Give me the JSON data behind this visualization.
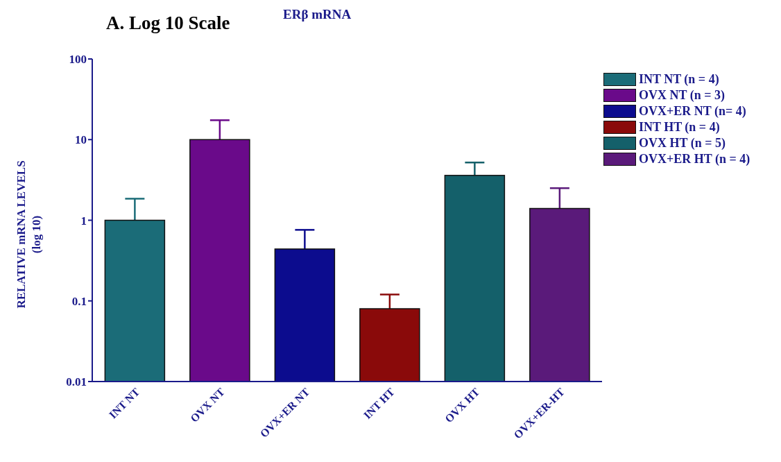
{
  "chart_data": {
    "type": "bar",
    "title": "ERβ mRNA",
    "annotations": [
      "A. Log 10 Scale"
    ],
    "ylabel": "RELATIVE mRNA  LEVELS\n(log 10)",
    "categories": [
      "INT NT",
      "OVX NT",
      "OVX+ER NT",
      "INT HT",
      "OVX HT",
      "OVX+ER-HT"
    ],
    "series": [
      {
        "name": "INT NT (n = 4)",
        "color": "#1b6c78",
        "values": [
          1.0,
          null,
          null,
          null,
          null,
          null
        ],
        "errors": [
          [
            1.0,
            1.85
          ],
          null,
          null,
          null,
          null,
          null
        ]
      },
      {
        "name": "OVX NT (n = 3)",
        "color": "#6a0a8a",
        "values": [
          null,
          10,
          null,
          null,
          null,
          null
        ],
        "errors": [
          null,
          [
            10,
            17.4
          ],
          null,
          null,
          null,
          null
        ]
      },
      {
        "name": "OVX+ER NT (n= 4)",
        "color": "#0c0c8e",
        "values": [
          null,
          null,
          0.44,
          null,
          null,
          null
        ],
        "errors": [
          null,
          null,
          [
            0.44,
            0.76
          ],
          null,
          null,
          null
        ]
      },
      {
        "name": "INT HT (n = 4)",
        "color": "#8a0a0a",
        "values": [
          null,
          null,
          null,
          0.08,
          null,
          null
        ],
        "errors": [
          null,
          null,
          null,
          [
            0.08,
            0.12
          ],
          null,
          null
        ]
      },
      {
        "name": "OVX HT (n = 5)",
        "color": "#14606a",
        "values": [
          null,
          null,
          null,
          null,
          3.6,
          null
        ],
        "errors": [
          null,
          null,
          null,
          null,
          [
            3.6,
            5.2
          ],
          null
        ]
      },
      {
        "name": "OVX+ER HT (n = 4)",
        "color": "#5a1a7a",
        "values": [
          null,
          null,
          null,
          null,
          null,
          1.4
        ],
        "errors": [
          null,
          null,
          null,
          null,
          null,
          [
            1.4,
            2.5
          ]
        ]
      }
    ],
    "log": "y",
    "ylim": [
      0.01,
      100
    ],
    "yticks": [
      0.01,
      0.1,
      1,
      10,
      100
    ],
    "grid": false,
    "legend": "top right"
  }
}
